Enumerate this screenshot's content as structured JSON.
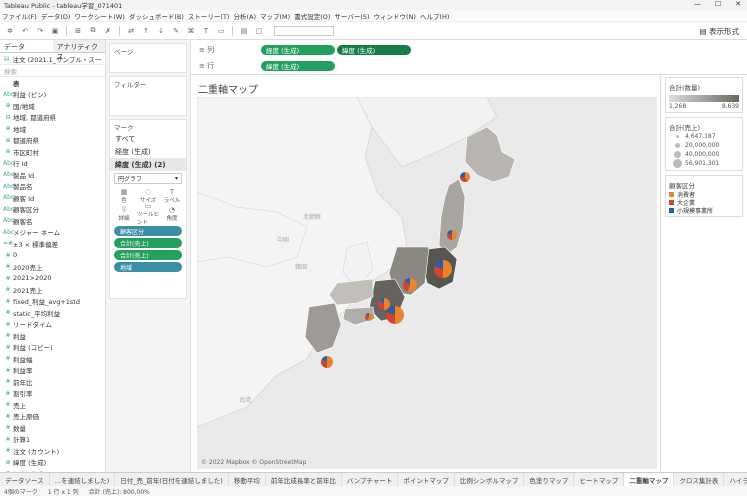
{
  "window": {
    "title": "Tableau Public - tableau学習_071401",
    "controls": [
      "—",
      "☐",
      "✕"
    ]
  },
  "menu": [
    "ファイル(F)",
    "データ(D)",
    "ワークシート(W)",
    "ダッシュボード(B)",
    "ストーリー(T)",
    "分析(A)",
    "マップ(M)",
    "書式設定(O)",
    "サーバー(S)",
    "ウィンドウ(N)",
    "ヘルプ(H)"
  ],
  "toolbar": {
    "present_label": "表示形式"
  },
  "left": {
    "tabs": [
      "データ",
      "アナリティクス"
    ],
    "datasource": "注文 (2021.1_サンプル・ス一",
    "search_placeholder": "検索",
    "fields": [
      {
        "icon": "",
        "label": "表",
        "hdr": true
      },
      {
        "icon": "Abc",
        "label": "利益 (ビン)"
      },
      {
        "icon": "⊕",
        "label": "国/地域"
      },
      {
        "icon": "⊟",
        "label": "地域, 都道府県"
      },
      {
        "icon": "⊕",
        "label": "地域"
      },
      {
        "icon": "⊕",
        "label": "都道府県"
      },
      {
        "icon": "⊕",
        "label": "市区町村"
      },
      {
        "icon": "Abc",
        "label": "行 Id"
      },
      {
        "icon": "Abc",
        "label": "製品 Id"
      },
      {
        "icon": "Abc",
        "label": "製品名"
      },
      {
        "icon": "Abc",
        "label": "顧客 Id"
      },
      {
        "icon": "Abc",
        "label": "顧客区分"
      },
      {
        "icon": "Abc",
        "label": "顧客名"
      },
      {
        "icon": "Abc",
        "label": "メジャー ネーム"
      },
      {
        "icon": "=#",
        "label": "±3 × 標準偏差"
      },
      {
        "icon": "#",
        "label": "0"
      },
      {
        "icon": "#",
        "label": "2020売上"
      },
      {
        "icon": "#",
        "label": "2021>2020"
      },
      {
        "icon": "#",
        "label": "2021売上"
      },
      {
        "icon": "#",
        "label": "fixed_利益_avg+1std"
      },
      {
        "icon": "#",
        "label": "static_平均利益"
      },
      {
        "icon": "#",
        "label": "リードタイム"
      },
      {
        "icon": "#",
        "label": "利益"
      },
      {
        "icon": "#",
        "label": "利益 (コピー)"
      },
      {
        "icon": "#",
        "label": "利益幅"
      },
      {
        "icon": "#",
        "label": "利益率"
      },
      {
        "icon": "#",
        "label": "前年比"
      },
      {
        "icon": "#",
        "label": "割引率"
      },
      {
        "icon": "#",
        "label": "売上"
      },
      {
        "icon": "#",
        "label": "売上原価"
      },
      {
        "icon": "#",
        "label": "数量"
      },
      {
        "icon": "#",
        "label": "計算1"
      },
      {
        "icon": "#",
        "label": "注文 (カウント)"
      },
      {
        "icon": "⊕",
        "label": "緯度 (生成)"
      },
      {
        "icon": "⊕",
        "label": "経度 (生成)"
      }
    ]
  },
  "shelves": {
    "pages": "ページ",
    "filters": "フィルター",
    "marks_title": "マーク",
    "marks_rows": [
      "すべて",
      "経度 (生成)",
      "緯度 (生成) (2)"
    ],
    "mark_type": "円グラフ",
    "buttons": [
      {
        "g": "▦",
        "l": "色"
      },
      {
        "g": "◌",
        "l": "サイズ"
      },
      {
        "g": "T",
        "l": "ラベル"
      },
      {
        "g": "⠿",
        "l": "詳細"
      },
      {
        "g": "▭",
        "l": "ツールヒント"
      },
      {
        "g": "◔",
        "l": "角度"
      }
    ],
    "pills": [
      {
        "label": "顧客区分",
        "c": "blue"
      },
      {
        "label": "合計(売上)",
        "c": "green"
      },
      {
        "label": "合計(売上)",
        "c": "green"
      },
      {
        "label": "地域",
        "c": "blue"
      }
    ]
  },
  "columns": {
    "label": "列",
    "pills": [
      "経度 (生成)",
      "緯度 (生成)"
    ]
  },
  "rows": {
    "label": "行",
    "pills": [
      "緯度 (生成)"
    ]
  },
  "view": {
    "title": "二重軸マップ",
    "copyright": "© 2022 Mapbox © OpenStreetMap"
  },
  "legend": {
    "qty_title": "合計(数量)",
    "qty_min": "1,268",
    "qty_max": "8,639",
    "sales_title": "合計(売上)",
    "sizes": [
      "4,647,187",
      "20,000,000",
      "40,000,000",
      "56,901,301"
    ],
    "seg_title": "顧客区分",
    "segments": [
      {
        "label": "消費者",
        "color": "#e8852a"
      },
      {
        "label": "大企業",
        "color": "#d2442b"
      },
      {
        "label": "小規模事業所",
        "color": "#2e5da8"
      }
    ]
  },
  "tabs": [
    "データソース",
    "…を連結しました)",
    "日付_売_前年(日付を連結しました)",
    "移動平均",
    "前年比成長率と前年比",
    "バンプチャート",
    "ポイントマップ",
    "比例シンボルマップ",
    "色塗りマップ",
    "ヒートマップ",
    "二重軸マップ",
    "クロス集計表",
    "ハイライト表",
    "ヒートマップ(集計)",
    "シート"
  ],
  "active_tab": "二重軸マップ",
  "status": [
    "4個のマーク",
    "1 行 x 1 列",
    "合計 (売上): 800,00%"
  ],
  "pies": [
    {
      "name": "hokkaido",
      "v": [
        0.4,
        0.35,
        0.25
      ]
    },
    {
      "name": "tohoku",
      "v": [
        0.5,
        0.3,
        0.2
      ]
    },
    {
      "name": "kanto",
      "v": [
        0.5,
        0.3,
        0.2
      ]
    },
    {
      "name": "chubu",
      "v": [
        0.55,
        0.3,
        0.15
      ]
    },
    {
      "name": "kansai",
      "v": [
        0.5,
        0.3,
        0.2
      ]
    },
    {
      "name": "chugoku",
      "v": [
        0.5,
        0.35,
        0.15
      ]
    },
    {
      "name": "shikoku",
      "v": [
        0.55,
        0.3,
        0.15
      ]
    },
    {
      "name": "kyushu",
      "v": [
        0.5,
        0.3,
        0.2
      ]
    }
  ]
}
